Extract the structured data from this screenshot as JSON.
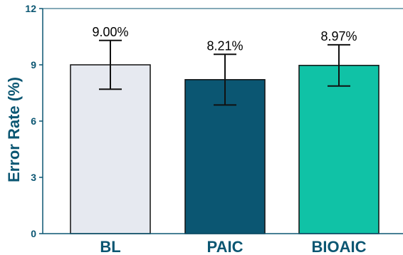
{
  "chart_data": {
    "type": "bar",
    "categories": [
      "BL",
      "PAIC",
      "BIOAIC"
    ],
    "values": [
      9.0,
      8.21,
      8.97
    ],
    "errors": [
      1.3,
      1.35,
      1.1
    ],
    "data_labels": [
      "9.00%",
      "8.21%",
      "8.97%"
    ],
    "bar_colors": [
      "#e6e9f0",
      "#0b5672",
      "#10c2a6"
    ],
    "ylabel": "Error Rate (%)",
    "xlabel": "",
    "ylim": [
      0,
      12
    ],
    "yticks": [
      0,
      3,
      6,
      9,
      12
    ],
    "ytick_labels": [
      "0",
      "3",
      "6",
      "9",
      "12"
    ],
    "grid": false,
    "axis_color": "#0b5672",
    "text_color": "#0b5672"
  }
}
